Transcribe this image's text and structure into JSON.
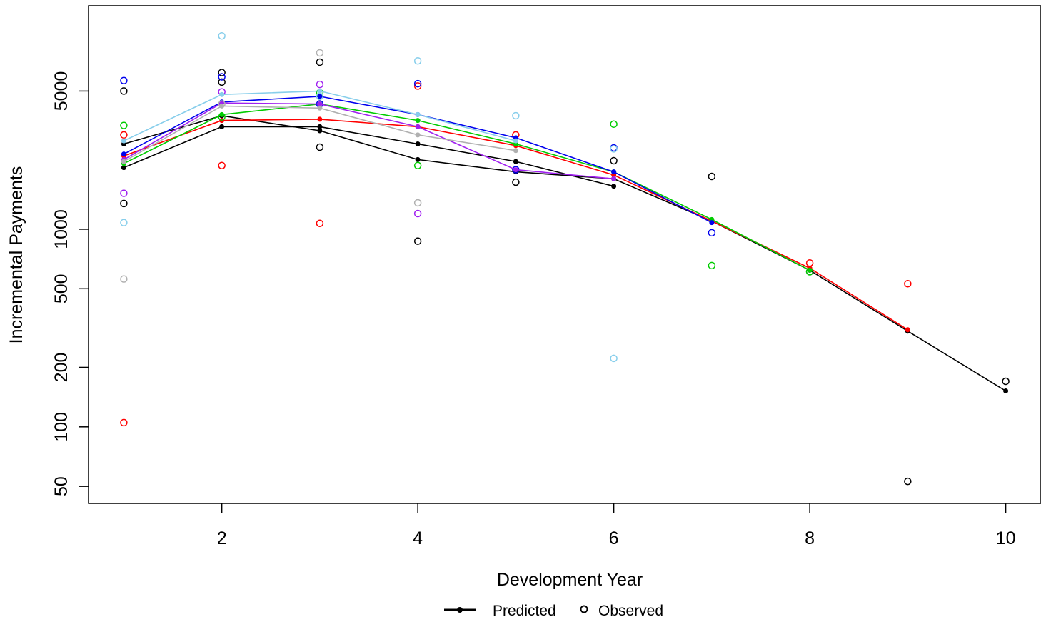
{
  "chart_data": {
    "type": "line",
    "title": "",
    "xlabel": "Development Year",
    "ylabel": "Incremental Payments",
    "x_scale": "linear",
    "y_scale": "log",
    "xlim": [
      0.64,
      10.36
    ],
    "ylim": [
      41,
      13500
    ],
    "xticks": [
      2,
      4,
      6,
      8,
      10
    ],
    "xtick_labels": [
      "2",
      "4",
      "6",
      "8",
      "10"
    ],
    "yticks": [
      50,
      100,
      200,
      500,
      1000,
      5000
    ],
    "ytick_labels": [
      "50",
      "100",
      "200",
      "500",
      "1000",
      "5000"
    ],
    "grid": false,
    "legend": {
      "position": "bottom-center",
      "entries": [
        {
          "label": "Predicted",
          "symbol": "line-with-filled-dot",
          "color": "#000000"
        },
        {
          "label": "Observed",
          "symbol": "open-circle",
          "color": "#000000"
        }
      ]
    },
    "series": [
      {
        "color": "#000000",
        "predicted": [
          [
            1,
            2700
          ],
          [
            2,
            3750
          ],
          [
            3,
            3150
          ],
          [
            4,
            2250
          ],
          [
            5,
            1950
          ],
          [
            6,
            1800
          ],
          [
            7,
            1100
          ],
          [
            8,
            620
          ],
          [
            9,
            305
          ],
          [
            10,
            152
          ]
        ],
        "observed": [
          [
            1,
            5000
          ],
          [
            2,
            6200
          ],
          [
            3,
            7000
          ],
          [
            4,
            870
          ],
          [
            5,
            1730
          ],
          [
            6,
            2220
          ],
          [
            7,
            1850
          ],
          [
            8,
            610
          ],
          [
            9,
            53
          ],
          [
            10,
            170
          ]
        ]
      },
      {
        "color": "#000000",
        "predicted": [
          [
            1,
            2050
          ],
          [
            2,
            3300
          ],
          [
            3,
            3300
          ],
          [
            4,
            2700
          ],
          [
            5,
            2200
          ],
          [
            6,
            1650
          ]
        ],
        "observed": [
          [
            1,
            1350
          ],
          [
            2,
            5550
          ],
          [
            3,
            2600
          ]
        ]
      },
      {
        "color": "#ff0000",
        "predicted": [
          [
            1,
            2350
          ],
          [
            2,
            3550
          ],
          [
            3,
            3600
          ],
          [
            4,
            3300
          ],
          [
            5,
            2650
          ],
          [
            6,
            1880
          ],
          [
            7,
            1100
          ],
          [
            8,
            635
          ],
          [
            9,
            310
          ]
        ],
        "observed": [
          [
            1,
            3000
          ],
          [
            2,
            2100
          ],
          [
            3,
            1070
          ],
          [
            4,
            5300
          ],
          [
            5,
            3000
          ],
          [
            9,
            530
          ],
          [
            1,
            105
          ],
          [
            8,
            675
          ]
        ]
      },
      {
        "color": "#00cc00",
        "predicted": [
          [
            1,
            2150
          ],
          [
            2,
            3800
          ],
          [
            3,
            4300
          ],
          [
            4,
            3550
          ],
          [
            5,
            2700
          ],
          [
            6,
            1950
          ],
          [
            7,
            1120
          ],
          [
            8,
            620
          ]
        ],
        "observed": [
          [
            1,
            3350
          ],
          [
            2,
            3700
          ],
          [
            3,
            4900
          ],
          [
            4,
            2100
          ],
          [
            6,
            3400
          ],
          [
            7,
            655
          ],
          [
            8,
            610
          ]
        ]
      },
      {
        "color": "#0000ee",
        "predicted": [
          [
            1,
            2400
          ],
          [
            2,
            4400
          ],
          [
            3,
            4700
          ],
          [
            4,
            3800
          ],
          [
            5,
            2900
          ],
          [
            6,
            1950
          ],
          [
            7,
            1080
          ]
        ],
        "observed": [
          [
            1,
            5650
          ],
          [
            2,
            5900
          ],
          [
            3,
            4300
          ],
          [
            4,
            5450
          ],
          [
            5,
            2000
          ],
          [
            6,
            2580
          ],
          [
            7,
            960
          ]
        ]
      },
      {
        "color": "#a020f0",
        "predicted": [
          [
            1,
            2250
          ],
          [
            2,
            4350
          ],
          [
            3,
            4300
          ],
          [
            4,
            3300
          ],
          [
            5,
            2000
          ],
          [
            6,
            1800
          ]
        ],
        "observed": [
          [
            1,
            1520
          ],
          [
            2,
            4950
          ],
          [
            3,
            5400
          ],
          [
            4,
            1200
          ]
        ]
      },
      {
        "color": "#b0b0b0",
        "predicted": [
          [
            1,
            2200
          ],
          [
            2,
            4200
          ],
          [
            3,
            4100
          ],
          [
            4,
            3000
          ],
          [
            5,
            2500
          ]
        ],
        "observed": [
          [
            1,
            560
          ],
          [
            2,
            4300
          ],
          [
            3,
            7800
          ],
          [
            4,
            1360
          ]
        ]
      },
      {
        "color": "#87ceeb",
        "predicted": [
          [
            1,
            2800
          ],
          [
            2,
            4800
          ],
          [
            3,
            5000
          ],
          [
            4,
            3800
          ],
          [
            5,
            2800
          ]
        ],
        "observed": [
          [
            1,
            1080
          ],
          [
            2,
            9500
          ],
          [
            3,
            4700
          ],
          [
            4,
            7100
          ],
          [
            5,
            3750
          ],
          [
            6,
            2550
          ],
          [
            6,
            222
          ]
        ]
      }
    ]
  }
}
